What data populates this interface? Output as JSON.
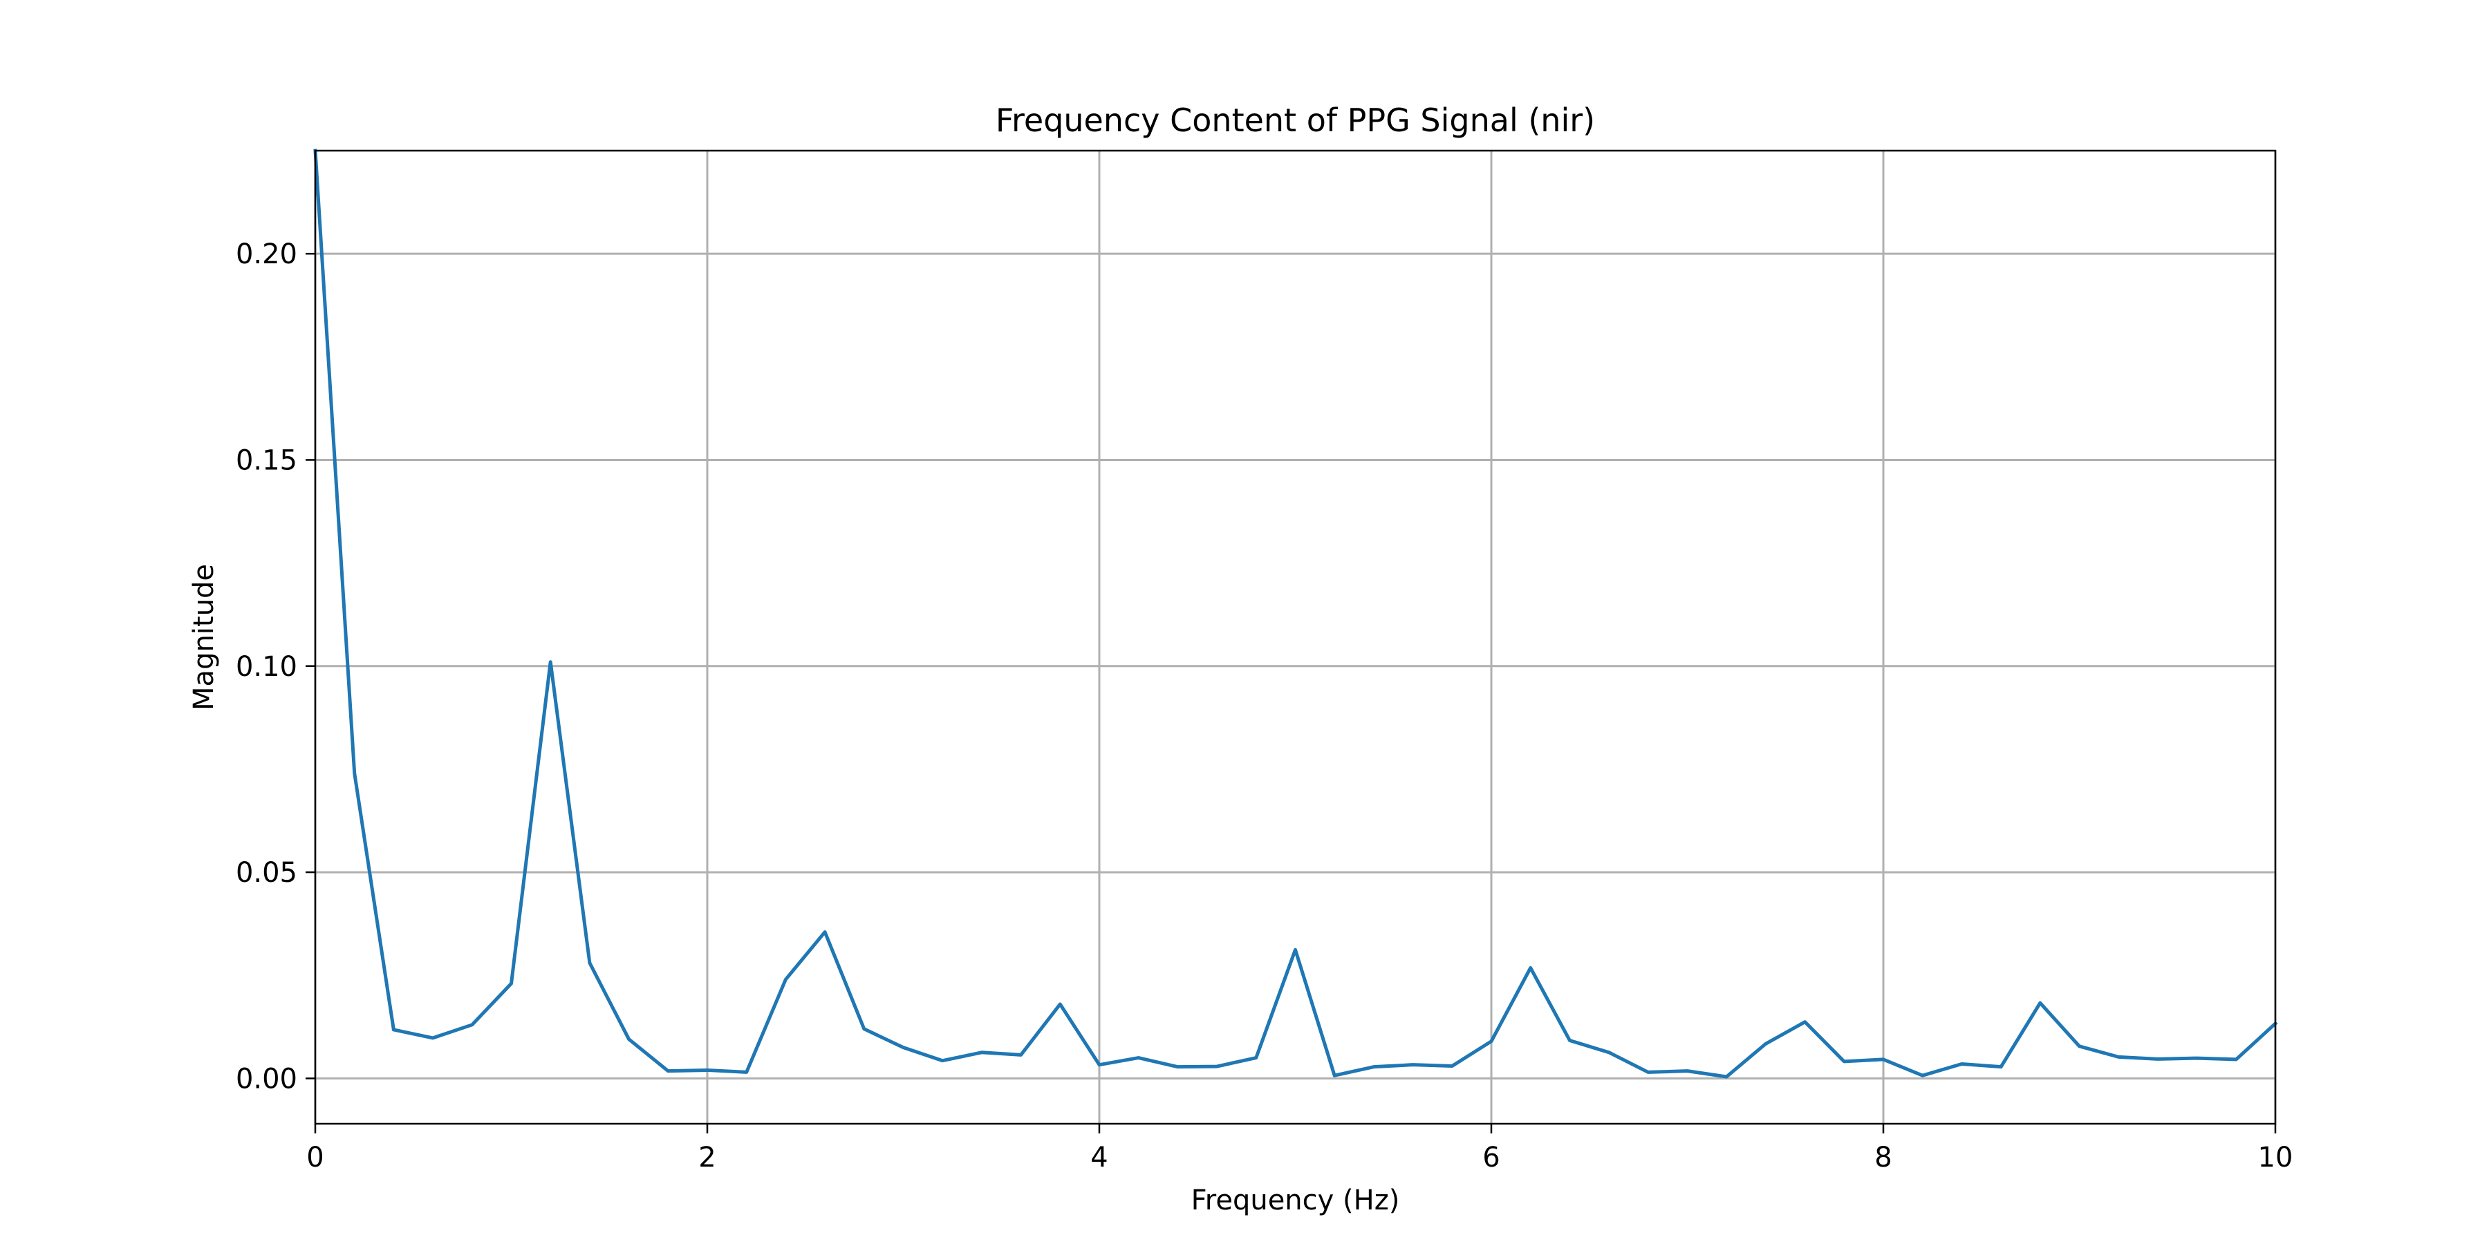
{
  "chart_data": {
    "type": "line",
    "title": "Frequency Content of PPG Signal (nir)",
    "xlabel": "Frequency (Hz)",
    "ylabel": "Magnitude",
    "xlim": [
      0,
      10
    ],
    "ylim": [
      -0.011,
      0.225
    ],
    "xticks": [
      0,
      2,
      4,
      6,
      8,
      10
    ],
    "xtick_labels": [
      "0",
      "2",
      "4",
      "6",
      "8",
      "10"
    ],
    "yticks": [
      0.0,
      0.05,
      0.1,
      0.15,
      0.2
    ],
    "ytick_labels": [
      "0.00",
      "0.05",
      "0.10",
      "0.15",
      "0.20"
    ],
    "grid": true,
    "series": [
      {
        "color": "#1f77b4",
        "x": [
          0.0,
          0.2,
          0.4,
          0.6,
          0.8,
          1.0,
          1.2,
          1.4,
          1.6,
          1.8,
          2.0,
          2.2,
          2.4,
          2.6,
          2.8,
          3.0,
          3.2,
          3.4,
          3.6,
          3.8,
          4.0,
          4.2,
          4.4,
          4.6,
          4.8,
          5.0,
          5.2,
          5.4,
          5.6,
          5.8,
          6.0,
          6.2,
          6.4,
          6.6,
          6.8,
          7.0,
          7.2,
          7.4,
          7.6,
          7.8,
          8.0,
          8.2,
          8.4,
          8.6,
          8.8,
          9.0,
          9.2,
          9.4,
          9.6,
          9.8,
          10.0
        ],
        "y": [
          0.225,
          0.074,
          0.0118,
          0.0098,
          0.013,
          0.023,
          0.101,
          0.028,
          0.0095,
          0.0018,
          0.002,
          0.0015,
          0.024,
          0.0355,
          0.012,
          0.0075,
          0.0043,
          0.0063,
          0.0057,
          0.018,
          0.0033,
          0.005,
          0.0028,
          0.0029,
          0.005,
          0.0312,
          0.0007,
          0.0028,
          0.0033,
          0.003,
          0.009,
          0.0268,
          0.0092,
          0.0063,
          0.0015,
          0.0018,
          0.0004,
          0.0084,
          0.0137,
          0.0041,
          0.0046,
          0.0007,
          0.0035,
          0.0028,
          0.0183,
          0.0078,
          0.0052,
          0.0047,
          0.0049,
          0.0046,
          0.0133
        ]
      }
    ]
  }
}
